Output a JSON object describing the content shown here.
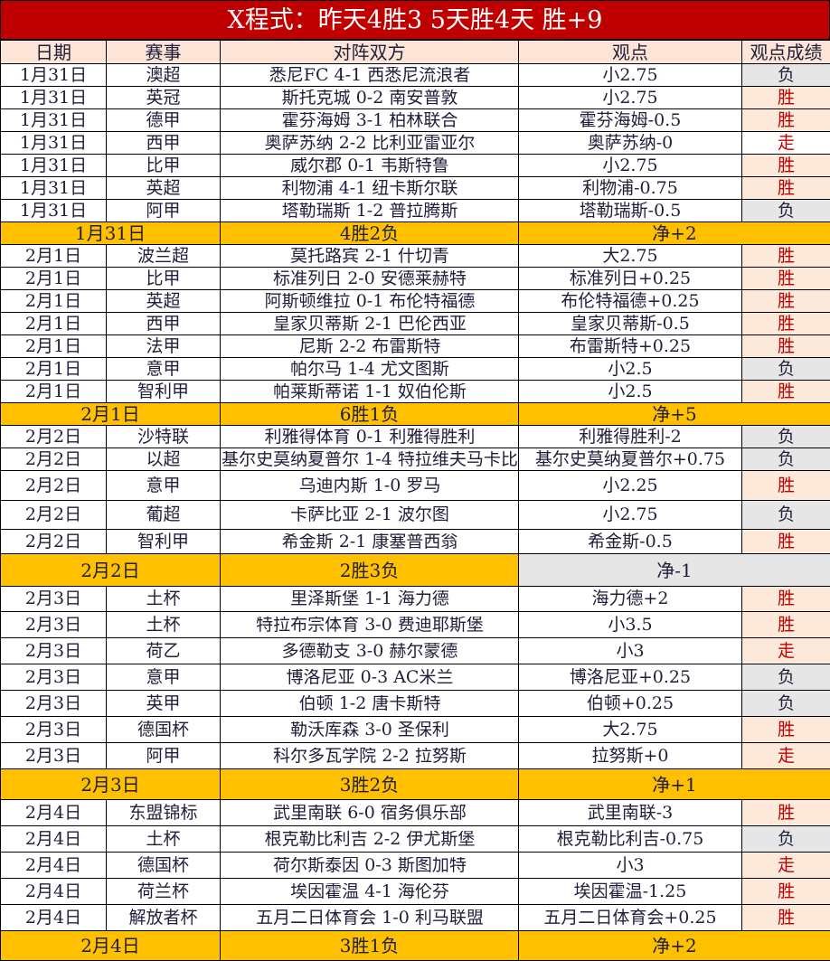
{
  "title": "X程式：昨天4胜3  5天胜4天  胜+9",
  "headers": [
    "日期",
    "赛事",
    "对阵双方",
    "观点",
    "观点成绩"
  ],
  "colors": {
    "title_bg": "#c00000",
    "header_bg": "#fce4d6",
    "summary_bg": "#ffc000",
    "win_text": "#c00000",
    "win_bg": "#fde9d9",
    "loss_bg": "#e7e6e6"
  },
  "groups": [
    {
      "rows": [
        [
          "1月31日",
          "澳超",
          "悉尼FC 4-1 西悉尼流浪者",
          "小2.75",
          "负"
        ],
        [
          "1月31日",
          "英冠",
          "斯托克城 0-2 南安普敦",
          "小2.75",
          "胜"
        ],
        [
          "1月31日",
          "德甲",
          "霍芬海姆 3-1 柏林联合",
          "霍芬海姆-0.5",
          "胜"
        ],
        [
          "1月31日",
          "西甲",
          "奥萨苏纳 2-2 比利亚雷亚尔",
          "奥萨苏纳-0",
          "走"
        ],
        [
          "1月31日",
          "比甲",
          "威尔郡 0-1 韦斯特鲁",
          "小2.75",
          "胜"
        ],
        [
          "1月31日",
          "英超",
          "利物浦 4-1 纽卡斯尔联",
          "利物浦-0.75",
          "胜"
        ],
        [
          "1月31日",
          "阿甲",
          "塔勒瑞斯 1-2 普拉腾斯",
          "塔勒瑞斯-0.5",
          "负"
        ]
      ],
      "summary": {
        "date": "1月31日",
        "record": "4胜2负",
        "net": "净+2"
      }
    },
    {
      "rows": [
        [
          "2月1日",
          "波兰超",
          "莫托路宾 2-1 什切青",
          "大2.75",
          "胜"
        ],
        [
          "2月1日",
          "比甲",
          "标准列日 2-0 安德莱赫特",
          "标准列日+0.25",
          "胜"
        ],
        [
          "2月1日",
          "英超",
          "阿斯顿维拉 0-1 布伦特福德",
          "布伦特福德+0.25",
          "胜"
        ],
        [
          "2月1日",
          "西甲",
          "皇家贝蒂斯 2-1 巴伦西亚",
          "皇家贝蒂斯-0.5",
          "胜"
        ],
        [
          "2月1日",
          "法甲",
          "尼斯 2-2 布雷斯特",
          "布雷斯特+0.25",
          "胜"
        ],
        [
          "2月1日",
          "意甲",
          "帕尔马 1-4 尤文图斯",
          "小2.5",
          "负"
        ],
        [
          "2月1日",
          "智利甲",
          "帕莱斯蒂诺 1-1 奴伯伦斯",
          "小2.5",
          "胜"
        ]
      ],
      "summary": {
        "date": "2月1日",
        "record": "6胜1负",
        "net": "净+5"
      }
    },
    {
      "rows": [
        [
          "2月2日",
          "沙特联",
          "利雅得体育 0-1 利雅得胜利",
          "利雅得胜利-2",
          "负"
        ],
        [
          "2月2日",
          "以超",
          "基尔史莫纳夏普尔 1-4 特拉维夫马卡比",
          "基尔史莫纳夏普尔+0.75",
          "负"
        ],
        [
          "2月2日",
          "意甲",
          "乌迪内斯 1-0 罗马",
          "小2.25",
          "胜"
        ],
        [
          "2月2日",
          "葡超",
          "卡萨比亚 2-1 波尔图",
          "小2.75",
          "负"
        ],
        [
          "2月2日",
          "智利甲",
          "希金斯 2-1 康塞普西翁",
          "希金斯-0.5",
          "胜"
        ]
      ],
      "summary": {
        "date": "2月2日",
        "record": "2胜3负",
        "net": "净-1",
        "net_gray": true
      }
    },
    {
      "rows": [
        [
          "2月3日",
          "土杯",
          "里泽斯堡 1-1 海力德",
          "海力德+2",
          "胜"
        ],
        [
          "2月3日",
          "土杯",
          "特拉布宗体育 3-0 费迪耶斯堡",
          "小3.5",
          "胜"
        ],
        [
          "2月3日",
          "荷乙",
          "多德勒支 3-0 赫尔蒙德",
          "小3",
          "走"
        ],
        [
          "2月3日",
          "意甲",
          "博洛尼亚 0-3 AC米兰",
          "博洛尼亚+0.25",
          "负"
        ],
        [
          "2月3日",
          "英甲",
          "伯顿 1-2 唐卡斯特",
          "伯顿+0.25",
          "负"
        ],
        [
          "2月3日",
          "德国杯",
          "勒沃库森 3-0 圣保利",
          "大2.75",
          "胜"
        ],
        [
          "2月3日",
          "阿甲",
          "科尔多瓦学院 2-2 拉努斯",
          "拉努斯+0",
          "走"
        ]
      ],
      "summary": {
        "date": "2月3日",
        "record": "3胜2负",
        "net": "净+1"
      }
    },
    {
      "rows": [
        [
          "2月4日",
          "东盟锦标",
          "武里南联 6-0 宿务俱乐部",
          "武里南联-3",
          "胜"
        ],
        [
          "2月4日",
          "土杯",
          "根克勒比利吉 2-2 伊尤斯堡",
          "根克勒比利吉-0.75",
          "负"
        ],
        [
          "2月4日",
          "德国杯",
          "荷尔斯泰因 0-3 斯图加特",
          "小3",
          "走"
        ],
        [
          "2月4日",
          "荷兰杯",
          "埃因霍温 4-1 海伦芬",
          "埃因霍温-1.25",
          "胜"
        ],
        [
          "2月4日",
          "解放者杯",
          "五月二日体育会 1-0 利马联盟",
          "五月二日体育会+0.25",
          "胜"
        ]
      ],
      "summary": {
        "date": "2月4日",
        "record": "3胜1负",
        "net": "净+2"
      }
    }
  ]
}
